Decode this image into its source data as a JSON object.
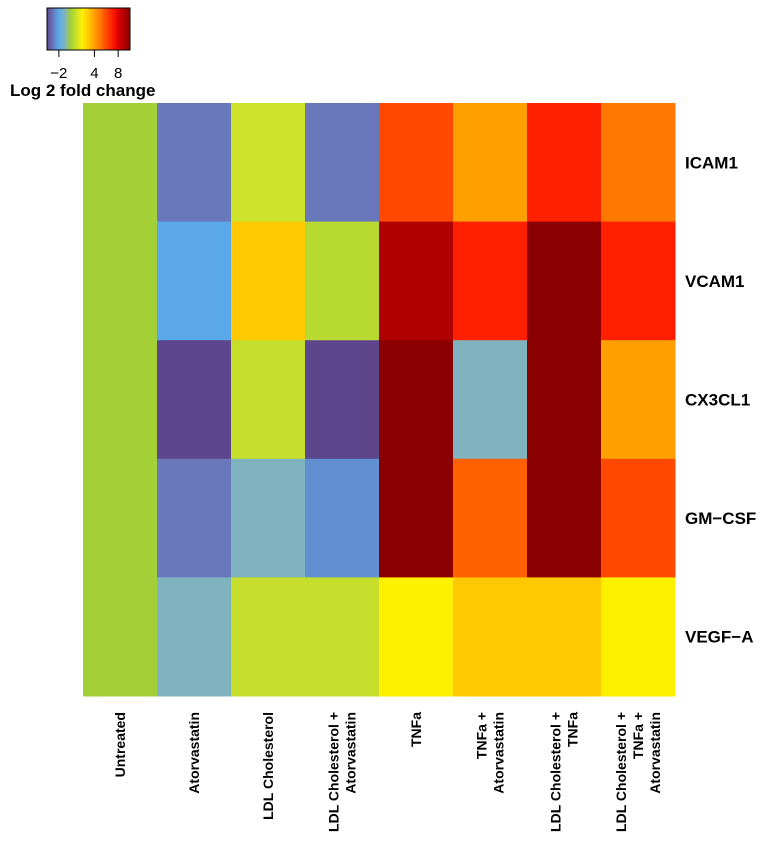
{
  "chart_data": {
    "type": "heatmap",
    "columns": [
      "Untreated",
      "Atorvastatin",
      "LDL Cholesterol",
      "LDL Cholesterol + Atorvastatin",
      "TNFa",
      "TNFa + Atorvastatin",
      "LDL Cholesterol + TNFa",
      "LDL Cholesterol + TNFa + Atorvastatin"
    ],
    "rows": [
      "ICAM1",
      "VCAM1",
      "CX3CL1",
      "GM−CSF",
      "VEGF−A"
    ],
    "values": [
      [
        0,
        -3,
        1,
        -3,
        6,
        4,
        7,
        5
      ],
      [
        0,
        -2,
        3,
        0.5,
        9,
        7,
        10,
        7
      ],
      [
        0,
        -4,
        0.8,
        -4,
        10,
        -1,
        10,
        4
      ],
      [
        0,
        -3,
        -1,
        -2.5,
        10,
        5.5,
        10,
        6
      ],
      [
        0,
        -1,
        0.8,
        0.8,
        2,
        3,
        3,
        2
      ]
    ],
    "zlim": [
      -4,
      10
    ],
    "zticks": [
      {
        "value": -2,
        "label": "−2"
      },
      4,
      8
    ],
    "colorscale": [
      "#5e468c",
      "#6878bb",
      "#5aa8e8",
      "#80b3c0",
      "#a3d036",
      "#cde22a",
      "#fff000",
      "#ffc800",
      "#ffa000",
      "#ff7800",
      "#ff4800",
      "#ff2000",
      "#e00000",
      "#b00000",
      "#8b0000"
    ],
    "colorbar_label": "Log 2 fold change"
  }
}
